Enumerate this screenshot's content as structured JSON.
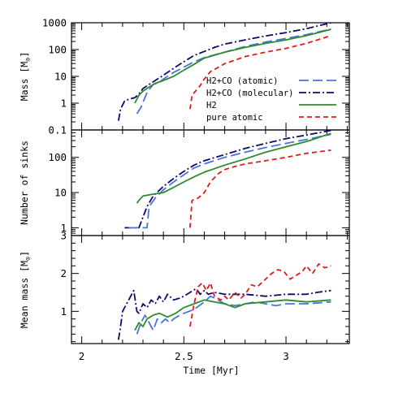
{
  "chart_data": [
    {
      "type": "line",
      "ylabel": "Mass [M_sun]",
      "ylabel_unit_symbol": "⊙",
      "yscale": "log",
      "ylim": [
        0.1,
        1000
      ],
      "yticks": [
        {
          "v": 1000,
          "label": "1000"
        },
        {
          "v": 100,
          "label": "100"
        },
        {
          "v": 10,
          "label": "10"
        },
        {
          "v": 1,
          "label": "1"
        },
        {
          "v": 0.1,
          "label": "0.1"
        }
      ],
      "legend_position": "lower-right",
      "legend": [
        {
          "series": "atomic",
          "label": "H2+CO (atomic)"
        },
        {
          "series": "molecular",
          "label": "H2+CO (molecular)"
        },
        {
          "series": "h2",
          "label": "H2"
        },
        {
          "series": "pure",
          "label": "pure atomic"
        }
      ],
      "series": [
        {
          "key": "molecular",
          "name": "H2+CO (molecular)",
          "color": "#0b0b6e",
          "dash": "dashdot",
          "points": [
            [
              2.18,
              0.22
            ],
            [
              2.19,
              0.6
            ],
            [
              2.21,
              1.2
            ],
            [
              2.23,
              1.4
            ],
            [
              2.26,
              1.6
            ],
            [
              2.28,
              2.2
            ],
            [
              2.3,
              3.5
            ],
            [
              2.33,
              5
            ],
            [
              2.36,
              7
            ],
            [
              2.4,
              11
            ],
            [
              2.45,
              20
            ],
            [
              2.5,
              35
            ],
            [
              2.55,
              60
            ],
            [
              2.6,
              85
            ],
            [
              2.65,
              120
            ],
            [
              2.7,
              160
            ],
            [
              2.8,
              230
            ],
            [
              2.9,
              320
            ],
            [
              3.0,
              430
            ],
            [
              3.1,
              600
            ],
            [
              3.22,
              1000
            ]
          ]
        },
        {
          "key": "atomic",
          "name": "H2+CO (atomic)",
          "color": "#4a74d8",
          "dash": "longdash",
          "points": [
            [
              2.27,
              0.4
            ],
            [
              2.29,
              0.7
            ],
            [
              2.32,
              2.5
            ],
            [
              2.35,
              5
            ],
            [
              2.38,
              6
            ],
            [
              2.4,
              8
            ],
            [
              2.45,
              14
            ],
            [
              2.5,
              22
            ],
            [
              2.55,
              35
            ],
            [
              2.6,
              50
            ],
            [
              2.7,
              80
            ],
            [
              2.8,
              130
            ],
            [
              2.9,
              190
            ],
            [
              3.0,
              260
            ],
            [
              3.1,
              360
            ],
            [
              3.22,
              580
            ]
          ]
        },
        {
          "key": "h2",
          "name": "H2",
          "color": "#2d8a2d",
          "dash": "solid",
          "points": [
            [
              2.26,
              1
            ],
            [
              2.28,
              2
            ],
            [
              2.3,
              2.8
            ],
            [
              2.33,
              4
            ],
            [
              2.36,
              5.5
            ],
            [
              2.4,
              7
            ],
            [
              2.45,
              10
            ],
            [
              2.5,
              17
            ],
            [
              2.55,
              28
            ],
            [
              2.6,
              48
            ],
            [
              2.7,
              80
            ],
            [
              2.8,
              120
            ],
            [
              2.9,
              170
            ],
            [
              3.0,
              230
            ],
            [
              3.1,
              330
            ],
            [
              3.22,
              570
            ]
          ]
        },
        {
          "key": "pure",
          "name": "pure atomic",
          "color": "#e01b1b",
          "dash": "shortdash",
          "points": [
            [
              2.53,
              0.6
            ],
            [
              2.54,
              2
            ],
            [
              2.56,
              3
            ],
            [
              2.58,
              4.5
            ],
            [
              2.6,
              8
            ],
            [
              2.63,
              15
            ],
            [
              2.67,
              22
            ],
            [
              2.7,
              30
            ],
            [
              2.75,
              40
            ],
            [
              2.8,
              55
            ],
            [
              2.9,
              80
            ],
            [
              3.0,
              110
            ],
            [
              3.1,
              170
            ],
            [
              3.22,
              330
            ]
          ]
        }
      ]
    },
    {
      "type": "line",
      "ylabel": "Number of sinks",
      "yscale": "log",
      "ylim": [
        0.6,
        600
      ],
      "yticks": [
        {
          "v": 100,
          "label": "100"
        },
        {
          "v": 10,
          "label": "10"
        },
        {
          "v": 1,
          "label": "1"
        }
      ],
      "series": [
        {
          "key": "molecular",
          "name": "H2+CO (molecular)",
          "color": "#0b0b6e",
          "dash": "dashdot",
          "points": [
            [
              2.21,
              1
            ],
            [
              2.28,
              1
            ],
            [
              2.3,
              2
            ],
            [
              2.32,
              4
            ],
            [
              2.35,
              8
            ],
            [
              2.4,
              15
            ],
            [
              2.45,
              25
            ],
            [
              2.5,
              40
            ],
            [
              2.55,
              60
            ],
            [
              2.6,
              80
            ],
            [
              2.7,
              120
            ],
            [
              2.8,
              180
            ],
            [
              2.9,
              250
            ],
            [
              3.0,
              340
            ],
            [
              3.1,
              430
            ],
            [
              3.22,
              580
            ]
          ]
        },
        {
          "key": "atomic",
          "name": "H2+CO (atomic)",
          "color": "#4a74d8",
          "dash": "longdash",
          "points": [
            [
              2.23,
              1
            ],
            [
              2.32,
              1
            ],
            [
              2.33,
              4
            ],
            [
              2.36,
              7
            ],
            [
              2.4,
              12
            ],
            [
              2.45,
              20
            ],
            [
              2.5,
              32
            ],
            [
              2.55,
              50
            ],
            [
              2.6,
              65
            ],
            [
              2.7,
              100
            ],
            [
              2.8,
              140
            ],
            [
              2.9,
              190
            ],
            [
              3.0,
              250
            ],
            [
              3.1,
              320
            ],
            [
              3.22,
              450
            ]
          ]
        },
        {
          "key": "h2",
          "name": "H2",
          "color": "#2d8a2d",
          "dash": "solid",
          "points": [
            [
              2.27,
              5
            ],
            [
              2.28,
              6
            ],
            [
              2.3,
              8
            ],
            [
              2.35,
              9
            ],
            [
              2.4,
              10
            ],
            [
              2.45,
              14
            ],
            [
              2.5,
              20
            ],
            [
              2.55,
              28
            ],
            [
              2.6,
              38
            ],
            [
              2.7,
              60
            ],
            [
              2.8,
              90
            ],
            [
              2.9,
              140
            ],
            [
              3.0,
              200
            ],
            [
              3.1,
              280
            ],
            [
              3.22,
              480
            ]
          ]
        },
        {
          "key": "pure",
          "name": "pure atomic",
          "color": "#e01b1b",
          "dash": "shortdash",
          "points": [
            [
              2.53,
              1
            ],
            [
              2.54,
              6
            ],
            [
              2.57,
              7
            ],
            [
              2.6,
              10
            ],
            [
              2.63,
              20
            ],
            [
              2.67,
              35
            ],
            [
              2.7,
              45
            ],
            [
              2.75,
              55
            ],
            [
              2.8,
              65
            ],
            [
              2.9,
              80
            ],
            [
              3.0,
              100
            ],
            [
              3.1,
              130
            ],
            [
              3.22,
              160
            ]
          ]
        }
      ]
    },
    {
      "type": "line",
      "ylabel": "Mean mass [M_sun]",
      "ylabel_unit_symbol": "⊙",
      "yscale": "linear",
      "ylim": [
        0.15,
        3
      ],
      "yticks": [
        {
          "v": 3,
          "label": "3"
        },
        {
          "v": 2,
          "label": "2"
        },
        {
          "v": 1,
          "label": "1"
        }
      ],
      "series": [
        {
          "key": "molecular",
          "name": "H2+CO (molecular)",
          "color": "#0b0b6e",
          "dash": "dashdot",
          "points": [
            [
              2.18,
              0.25
            ],
            [
              2.19,
              0.6
            ],
            [
              2.2,
              1
            ],
            [
              2.22,
              1.2
            ],
            [
              2.24,
              1.4
            ],
            [
              2.255,
              1.55
            ],
            [
              2.27,
              1
            ],
            [
              2.28,
              0.95
            ],
            [
              2.3,
              1.2
            ],
            [
              2.32,
              1.1
            ],
            [
              2.34,
              1.3
            ],
            [
              2.36,
              1.2
            ],
            [
              2.38,
              1.4
            ],
            [
              2.4,
              1.25
            ],
            [
              2.42,
              1.45
            ],
            [
              2.45,
              1.3
            ],
            [
              2.48,
              1.35
            ],
            [
              2.5,
              1.4
            ],
            [
              2.53,
              1.5
            ],
            [
              2.56,
              1.6
            ],
            [
              2.58,
              1.45
            ],
            [
              2.6,
              1.55
            ],
            [
              2.62,
              1.45
            ],
            [
              2.65,
              1.5
            ],
            [
              2.7,
              1.45
            ],
            [
              2.8,
              1.45
            ],
            [
              2.9,
              1.4
            ],
            [
              3.0,
              1.45
            ],
            [
              3.1,
              1.45
            ],
            [
              3.15,
              1.5
            ],
            [
              3.22,
              1.55
            ]
          ]
        },
        {
          "key": "atomic",
          "name": "H2+CO (atomic)",
          "color": "#4a74d8",
          "dash": "longdash",
          "points": [
            [
              2.27,
              0.4
            ],
            [
              2.29,
              0.7
            ],
            [
              2.31,
              0.9
            ],
            [
              2.33,
              0.7
            ],
            [
              2.35,
              0.5
            ],
            [
              2.37,
              0.8
            ],
            [
              2.39,
              0.7
            ],
            [
              2.41,
              0.8
            ],
            [
              2.43,
              0.7
            ],
            [
              2.45,
              0.8
            ],
            [
              2.48,
              0.9
            ],
            [
              2.5,
              0.95
            ],
            [
              2.55,
              1.05
            ],
            [
              2.6,
              1.25
            ],
            [
              2.63,
              1.4
            ],
            [
              2.65,
              1.35
            ],
            [
              2.7,
              1.2
            ],
            [
              2.75,
              1.15
            ],
            [
              2.8,
              1.2
            ],
            [
              2.85,
              1.25
            ],
            [
              2.9,
              1.2
            ],
            [
              2.95,
              1.15
            ],
            [
              3.0,
              1.2
            ],
            [
              3.1,
              1.2
            ],
            [
              3.22,
              1.25
            ]
          ]
        },
        {
          "key": "h2",
          "name": "H2",
          "color": "#2d8a2d",
          "dash": "solid",
          "points": [
            [
              2.26,
              0.5
            ],
            [
              2.28,
              0.7
            ],
            [
              2.3,
              0.6
            ],
            [
              2.32,
              0.8
            ],
            [
              2.35,
              0.9
            ],
            [
              2.38,
              0.95
            ],
            [
              2.42,
              0.85
            ],
            [
              2.46,
              0.95
            ],
            [
              2.5,
              1.1
            ],
            [
              2.55,
              1.2
            ],
            [
              2.6,
              1.3
            ],
            [
              2.65,
              1.25
            ],
            [
              2.7,
              1.2
            ],
            [
              2.75,
              1.1
            ],
            [
              2.8,
              1.2
            ],
            [
              2.9,
              1.25
            ],
            [
              3.0,
              1.3
            ],
            [
              3.1,
              1.25
            ],
            [
              3.22,
              1.3
            ]
          ]
        },
        {
          "key": "pure",
          "name": "pure atomic",
          "color": "#e01b1b",
          "dash": "shortdash",
          "points": [
            [
              2.53,
              0.6
            ],
            [
              2.54,
              0.9
            ],
            [
              2.55,
              1.2
            ],
            [
              2.57,
              1.65
            ],
            [
              2.59,
              1.75
            ],
            [
              2.61,
              1.55
            ],
            [
              2.63,
              1.75
            ],
            [
              2.65,
              1.4
            ],
            [
              2.68,
              1.3
            ],
            [
              2.7,
              1.4
            ],
            [
              2.72,
              1.3
            ],
            [
              2.75,
              1.5
            ],
            [
              2.78,
              1.35
            ],
            [
              2.8,
              1.45
            ],
            [
              2.83,
              1.7
            ],
            [
              2.86,
              1.65
            ],
            [
              2.9,
              1.85
            ],
            [
              2.93,
              2.0
            ],
            [
              2.96,
              2.1
            ],
            [
              2.99,
              2.05
            ],
            [
              3.02,
              1.85
            ],
            [
              3.05,
              1.95
            ],
            [
              3.08,
              2.05
            ],
            [
              3.1,
              2.2
            ],
            [
              3.13,
              2.0
            ],
            [
              3.16,
              2.25
            ],
            [
              3.19,
              2.15
            ],
            [
              3.22,
              2.2
            ]
          ]
        }
      ]
    }
  ],
  "x_axis": {
    "label": "Time [Myr]",
    "xlim": [
      1.95,
      3.31
    ],
    "ticks": [
      {
        "v": 2,
        "label": "2"
      },
      {
        "v": 2.5,
        "label": "2.5"
      },
      {
        "v": 3,
        "label": "3"
      }
    ]
  }
}
